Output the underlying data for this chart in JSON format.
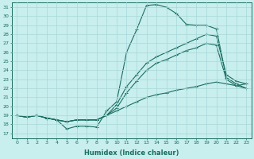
{
  "title": "",
  "xlabel": "Humidex (Indice chaleur)",
  "ylabel": "",
  "bg_color": "#c8eeee",
  "line_color": "#1a6e60",
  "grid_color": "#a8d8d8",
  "xlim": [
    -0.5,
    23.5
  ],
  "ylim": [
    16.5,
    31.5
  ],
  "xticks": [
    0,
    1,
    2,
    3,
    4,
    5,
    6,
    7,
    8,
    9,
    10,
    11,
    12,
    13,
    14,
    15,
    16,
    17,
    18,
    19,
    20,
    21,
    22,
    23
  ],
  "yticks": [
    17,
    18,
    19,
    20,
    21,
    22,
    23,
    24,
    25,
    26,
    27,
    28,
    29,
    30,
    31
  ],
  "line1_x": [
    0,
    1,
    2,
    3,
    4,
    5,
    6,
    7,
    8,
    9,
    10,
    11,
    12,
    13,
    14,
    15,
    16,
    17,
    18,
    19,
    20,
    21,
    22,
    23
  ],
  "line1_y": [
    19.0,
    18.8,
    19.0,
    18.7,
    18.5,
    17.5,
    17.8,
    17.8,
    17.7,
    19.5,
    20.5,
    26.0,
    28.5,
    31.2,
    31.3,
    31.0,
    30.3,
    29.1,
    29.0,
    29.0,
    28.6,
    23.2,
    22.5,
    22.0
  ],
  "line2_x": [
    0,
    1,
    2,
    3,
    4,
    5,
    6,
    7,
    8,
    9,
    10,
    11,
    12,
    13,
    14,
    15,
    16,
    17,
    18,
    19,
    20,
    21,
    22,
    23
  ],
  "line2_y": [
    19.0,
    18.8,
    19.0,
    18.7,
    18.5,
    18.3,
    18.5,
    18.5,
    18.5,
    19.0,
    20.2,
    22.2,
    23.5,
    24.8,
    25.5,
    26.0,
    26.5,
    27.0,
    27.5,
    28.0,
    27.8,
    23.5,
    22.8,
    22.5
  ],
  "line3_x": [
    0,
    1,
    2,
    3,
    4,
    5,
    6,
    7,
    8,
    9,
    10,
    11,
    12,
    13,
    14,
    15,
    16,
    17,
    18,
    19,
    20,
    21,
    22,
    23
  ],
  "line3_y": [
    19.0,
    18.8,
    19.0,
    18.7,
    18.5,
    18.3,
    18.5,
    18.5,
    18.5,
    19.0,
    19.8,
    21.5,
    22.8,
    24.0,
    24.8,
    25.2,
    25.7,
    26.2,
    26.5,
    27.0,
    26.8,
    23.0,
    22.3,
    22.0
  ],
  "line4_x": [
    0,
    1,
    2,
    3,
    4,
    5,
    6,
    7,
    8,
    9,
    10,
    11,
    12,
    13,
    14,
    15,
    16,
    17,
    18,
    19,
    20,
    21,
    22,
    23
  ],
  "line4_y": [
    19.0,
    18.8,
    19.0,
    18.7,
    18.5,
    18.3,
    18.5,
    18.5,
    18.5,
    19.0,
    19.5,
    20.0,
    20.5,
    21.0,
    21.3,
    21.5,
    21.8,
    22.0,
    22.2,
    22.5,
    22.7,
    22.5,
    22.3,
    22.5
  ]
}
